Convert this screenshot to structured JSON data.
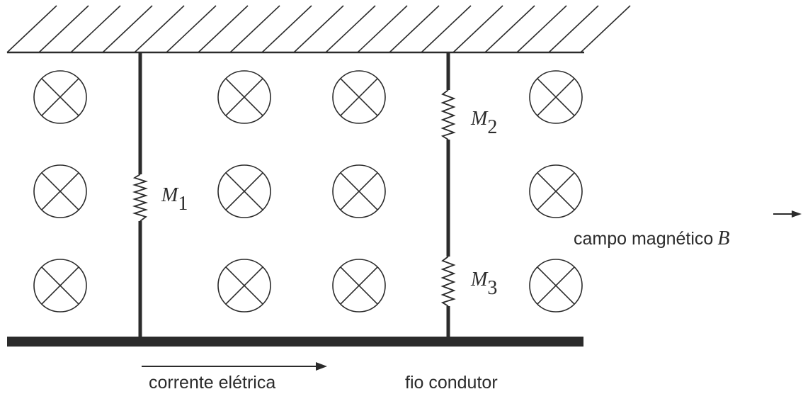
{
  "colors": {
    "ink": "#2b2b2b",
    "background": "#ffffff"
  },
  "springs": [
    {
      "label": "M",
      "subscript": "1"
    },
    {
      "label": "M",
      "subscript": "2"
    },
    {
      "label": "M",
      "subscript": "3"
    }
  ],
  "field": {
    "label": "campo magnético",
    "symbol": "B",
    "direction_icon": "field-into-page-icon"
  },
  "current": {
    "label": "corrente elétrica"
  },
  "wire": {
    "label": "fio condutor"
  }
}
